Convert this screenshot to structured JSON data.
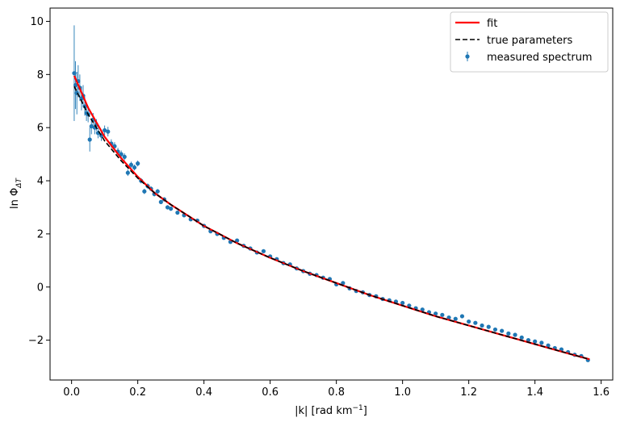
{
  "chart_data": {
    "type": "scatter",
    "xlabel": "|k| [rad km",
    "xlabel_sup": "−1",
    "xlabel_end": "]",
    "ylabel": "ln Φ",
    "ylabel_sub": "ΔT",
    "xlim": [
      -0.065,
      1.635
    ],
    "ylim": [
      -3.5,
      10.5
    ],
    "xticks": [
      0.0,
      0.2,
      0.4,
      0.6,
      0.8,
      1.0,
      1.2,
      1.4,
      1.6
    ],
    "xtick_labels": [
      "0.0",
      "0.2",
      "0.4",
      "0.6",
      "0.8",
      "1.0",
      "1.2",
      "1.4",
      "1.6"
    ],
    "yticks": [
      -2,
      0,
      2,
      4,
      6,
      8,
      10
    ],
    "ytick_labels": [
      "−2",
      "0",
      "2",
      "4",
      "6",
      "8",
      "10"
    ],
    "grid": false,
    "legend_position": "top-right",
    "colors": {
      "fit": "#ff0000",
      "true": "#000000",
      "measured": "#1f77b4"
    },
    "series": [
      {
        "name": "fit",
        "kind": "line",
        "x": [
          0.008,
          0.05,
          0.1,
          0.15,
          0.2,
          0.25,
          0.3,
          0.4,
          0.5,
          0.6,
          0.7,
          0.8,
          0.9,
          1.0,
          1.1,
          1.2,
          1.3,
          1.4,
          1.5,
          1.565
        ],
        "y": [
          7.95,
          6.75,
          5.65,
          4.85,
          4.15,
          3.55,
          3.1,
          2.3,
          1.65,
          1.1,
          0.6,
          0.15,
          -0.3,
          -0.7,
          -1.1,
          -1.45,
          -1.8,
          -2.15,
          -2.5,
          -2.72
        ]
      },
      {
        "name": "true parameters",
        "kind": "line",
        "x": [
          0.008,
          0.05,
          0.1,
          0.15,
          0.2,
          0.25,
          0.3,
          0.4,
          0.5,
          0.6,
          0.7,
          0.8,
          0.9,
          1.0,
          1.1,
          1.2,
          1.3,
          1.4,
          1.5,
          1.565
        ],
        "y": [
          7.55,
          6.5,
          5.5,
          4.75,
          4.1,
          3.55,
          3.1,
          2.3,
          1.65,
          1.1,
          0.6,
          0.15,
          -0.3,
          -0.7,
          -1.1,
          -1.45,
          -1.8,
          -2.15,
          -2.5,
          -2.72
        ]
      },
      {
        "name": "measured spectrum",
        "kind": "errorbar",
        "x": [
          0.008,
          0.012,
          0.016,
          0.02,
          0.025,
          0.03,
          0.035,
          0.04,
          0.045,
          0.05,
          0.055,
          0.06,
          0.065,
          0.07,
          0.075,
          0.08,
          0.09,
          0.1,
          0.11,
          0.12,
          0.13,
          0.14,
          0.15,
          0.16,
          0.17,
          0.18,
          0.19,
          0.2,
          0.21,
          0.22,
          0.23,
          0.24,
          0.25,
          0.26,
          0.27,
          0.28,
          0.29,
          0.3,
          0.32,
          0.34,
          0.36,
          0.38,
          0.4,
          0.42,
          0.44,
          0.46,
          0.48,
          0.5,
          0.52,
          0.54,
          0.56,
          0.58,
          0.6,
          0.62,
          0.64,
          0.66,
          0.68,
          0.7,
          0.72,
          0.74,
          0.76,
          0.78,
          0.8,
          0.82,
          0.84,
          0.86,
          0.88,
          0.9,
          0.92,
          0.94,
          0.96,
          0.98,
          1.0,
          1.02,
          1.04,
          1.06,
          1.08,
          1.1,
          1.12,
          1.14,
          1.16,
          1.18,
          1.2,
          1.22,
          1.24,
          1.26,
          1.28,
          1.3,
          1.32,
          1.34,
          1.36,
          1.38,
          1.4,
          1.42,
          1.44,
          1.46,
          1.48,
          1.5,
          1.52,
          1.54,
          1.56
        ],
        "y": [
          8.05,
          7.6,
          7.3,
          7.75,
          7.5,
          7.1,
          7.2,
          6.8,
          6.55,
          6.5,
          5.55,
          6.05,
          6.3,
          6.0,
          6.1,
          5.8,
          5.7,
          5.9,
          5.85,
          5.4,
          5.3,
          5.1,
          5.0,
          4.9,
          4.3,
          4.6,
          4.5,
          4.65,
          4.0,
          3.6,
          3.8,
          3.7,
          3.5,
          3.6,
          3.2,
          3.3,
          3.0,
          2.95,
          2.8,
          2.7,
          2.55,
          2.5,
          2.3,
          2.1,
          2.0,
          1.85,
          1.7,
          1.75,
          1.55,
          1.45,
          1.3,
          1.35,
          1.15,
          1.05,
          0.9,
          0.85,
          0.7,
          0.6,
          0.5,
          0.45,
          0.35,
          0.3,
          0.1,
          0.15,
          -0.05,
          -0.15,
          -0.2,
          -0.3,
          -0.35,
          -0.45,
          -0.5,
          -0.55,
          -0.6,
          -0.7,
          -0.8,
          -0.85,
          -0.95,
          -1.0,
          -1.05,
          -1.15,
          -1.2,
          -1.1,
          -1.3,
          -1.35,
          -1.45,
          -1.5,
          -1.6,
          -1.65,
          -1.75,
          -1.8,
          -1.9,
          -2.0,
          -2.05,
          -2.1,
          -2.2,
          -2.3,
          -2.35,
          -2.45,
          -2.55,
          -2.6,
          -2.75
        ],
        "err": [
          1.8,
          0.9,
          0.8,
          0.6,
          0.5,
          0.45,
          0.4,
          0.35,
          0.3,
          0.3,
          0.45,
          0.3,
          0.25,
          0.25,
          0.22,
          0.2,
          0.2,
          0.18,
          0.18,
          0.16,
          0.15,
          0.14,
          0.14,
          0.13,
          0.12,
          0.12,
          0.11,
          0.11,
          0.1,
          0.1,
          0.1,
          0.09,
          0.09,
          0.09,
          0.08,
          0.08,
          0.08,
          0.08,
          0.07,
          0.07,
          0.07,
          0.07,
          0.07,
          0.06,
          0.06,
          0.06,
          0.06,
          0.06,
          0.06,
          0.06,
          0.05,
          0.05,
          0.05,
          0.05,
          0.05,
          0.05,
          0.05,
          0.05,
          0.05,
          0.05,
          0.05,
          0.05,
          0.05,
          0.05,
          0.05,
          0.05,
          0.05,
          0.05,
          0.05,
          0.05,
          0.05,
          0.05,
          0.05,
          0.05,
          0.05,
          0.05,
          0.05,
          0.05,
          0.05,
          0.05,
          0.05,
          0.05,
          0.05,
          0.05,
          0.05,
          0.05,
          0.05,
          0.05,
          0.05,
          0.05,
          0.05,
          0.05,
          0.05,
          0.05,
          0.05,
          0.05,
          0.05,
          0.05,
          0.05,
          0.05,
          0.05
        ]
      }
    ]
  }
}
